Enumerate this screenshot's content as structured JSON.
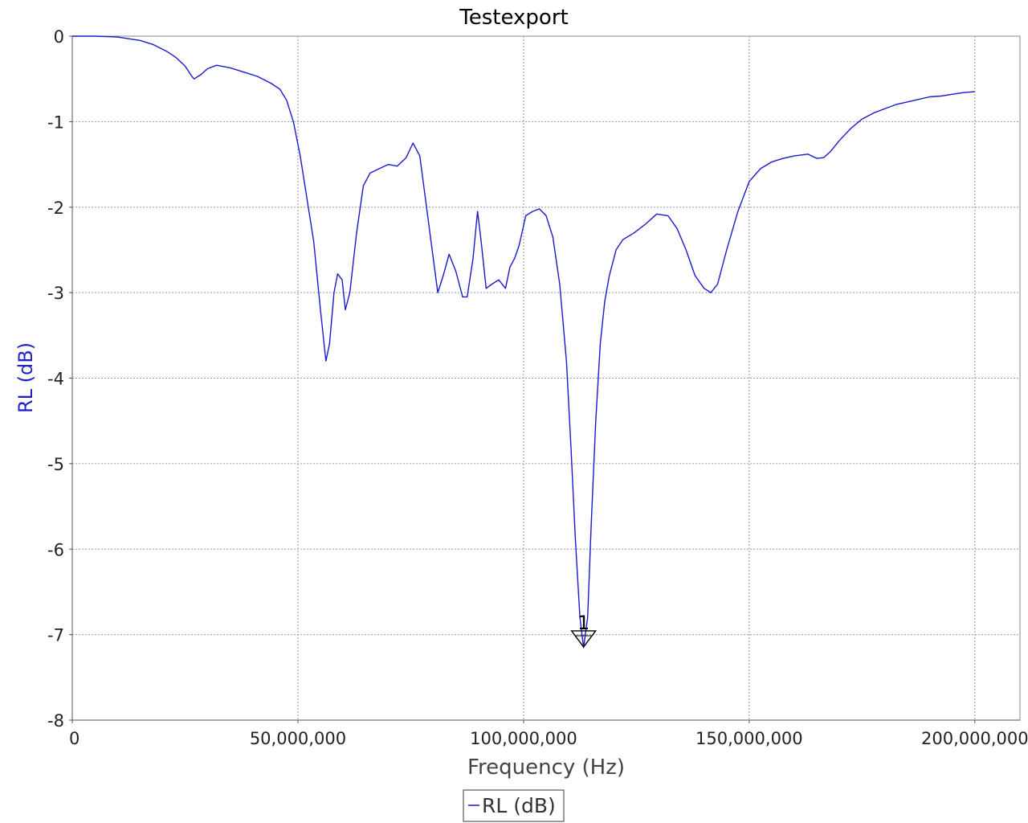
{
  "chart_data": {
    "type": "line",
    "title": "Testexport",
    "xlabel": "Frequency (Hz)",
    "ylabel": "RL (dB)",
    "xlim": [
      0,
      210000000
    ],
    "ylim": [
      -8,
      0
    ],
    "xticks": [
      0,
      50000000,
      100000000,
      150000000,
      200000000
    ],
    "xtick_labels": [
      "0",
      "50,000,000",
      "100,000,000",
      "150,000,000",
      "200,000,000"
    ],
    "yticks": [
      0,
      -1,
      -2,
      -3,
      -4,
      -5,
      -6,
      -7,
      -8
    ],
    "ytick_labels": [
      "0",
      "-1",
      "-2",
      "-3",
      "-4",
      "-5",
      "-6",
      "-7",
      "-8"
    ],
    "grid": true,
    "legend_position": "bottom-center",
    "series": [
      {
        "name": "RL (dB)",
        "color": "#1a1acc",
        "points": [
          [
            0,
            0
          ],
          [
            5000000,
            0
          ],
          [
            10000000,
            -0.01
          ],
          [
            15000000,
            -0.05
          ],
          [
            18000000,
            -0.1
          ],
          [
            21000000,
            -0.18
          ],
          [
            23000000,
            -0.25
          ],
          [
            25000000,
            -0.35
          ],
          [
            26500000,
            -0.47
          ],
          [
            27000000,
            -0.5
          ],
          [
            28500000,
            -0.45
          ],
          [
            30000000,
            -0.38
          ],
          [
            32000000,
            -0.34
          ],
          [
            35000000,
            -0.37
          ],
          [
            38000000,
            -0.42
          ],
          [
            41000000,
            -0.47
          ],
          [
            44000000,
            -0.55
          ],
          [
            46000000,
            -0.62
          ],
          [
            47500000,
            -0.75
          ],
          [
            49000000,
            -1.0
          ],
          [
            50500000,
            -1.4
          ],
          [
            52000000,
            -1.9
          ],
          [
            53500000,
            -2.4
          ],
          [
            55000000,
            -3.2
          ],
          [
            56200000,
            -3.8
          ],
          [
            57000000,
            -3.6
          ],
          [
            58000000,
            -3.0
          ],
          [
            58800000,
            -2.78
          ],
          [
            59800000,
            -2.85
          ],
          [
            60500000,
            -3.2
          ],
          [
            61500000,
            -3.0
          ],
          [
            63000000,
            -2.3
          ],
          [
            64500000,
            -1.75
          ],
          [
            66000000,
            -1.6
          ],
          [
            68000000,
            -1.55
          ],
          [
            70000000,
            -1.5
          ],
          [
            72000000,
            -1.52
          ],
          [
            74000000,
            -1.42
          ],
          [
            75500000,
            -1.25
          ],
          [
            77000000,
            -1.4
          ],
          [
            78500000,
            -2.0
          ],
          [
            80000000,
            -2.6
          ],
          [
            81000000,
            -3.0
          ],
          [
            82200000,
            -2.8
          ],
          [
            83500000,
            -2.55
          ],
          [
            85000000,
            -2.75
          ],
          [
            86500000,
            -3.05
          ],
          [
            87500000,
            -3.05
          ],
          [
            88800000,
            -2.6
          ],
          [
            89800000,
            -2.05
          ],
          [
            90600000,
            -2.4
          ],
          [
            91700000,
            -2.95
          ],
          [
            93000000,
            -2.9
          ],
          [
            94500000,
            -2.85
          ],
          [
            96000000,
            -2.95
          ],
          [
            97000000,
            -2.7
          ],
          [
            98000000,
            -2.6
          ],
          [
            99000000,
            -2.45
          ],
          [
            100500000,
            -2.1
          ],
          [
            102000000,
            -2.05
          ],
          [
            103500000,
            -2.02
          ],
          [
            105000000,
            -2.1
          ],
          [
            106500000,
            -2.35
          ],
          [
            108000000,
            -2.9
          ],
          [
            109500000,
            -3.8
          ],
          [
            110500000,
            -4.8
          ],
          [
            111500000,
            -5.9
          ],
          [
            112500000,
            -6.8
          ],
          [
            113300000,
            -7.15
          ],
          [
            114200000,
            -6.8
          ],
          [
            115000000,
            -5.7
          ],
          [
            116000000,
            -4.5
          ],
          [
            117000000,
            -3.6
          ],
          [
            118000000,
            -3.1
          ],
          [
            119000000,
            -2.8
          ],
          [
            120500000,
            -2.5
          ],
          [
            122000000,
            -2.38
          ],
          [
            124500000,
            -2.3
          ],
          [
            127000000,
            -2.2
          ],
          [
            129500000,
            -2.08
          ],
          [
            132000000,
            -2.1
          ],
          [
            134000000,
            -2.25
          ],
          [
            136000000,
            -2.5
          ],
          [
            138000000,
            -2.8
          ],
          [
            140000000,
            -2.95
          ],
          [
            141500000,
            -3.0
          ],
          [
            143000000,
            -2.9
          ],
          [
            145000000,
            -2.5
          ],
          [
            147500000,
            -2.05
          ],
          [
            150000000,
            -1.7
          ],
          [
            152500000,
            -1.55
          ],
          [
            155000000,
            -1.47
          ],
          [
            157500000,
            -1.43
          ],
          [
            160000000,
            -1.4
          ],
          [
            163000000,
            -1.38
          ],
          [
            165000000,
            -1.43
          ],
          [
            166500000,
            -1.42
          ],
          [
            168000000,
            -1.35
          ],
          [
            170000000,
            -1.22
          ],
          [
            172500000,
            -1.08
          ],
          [
            175000000,
            -0.97
          ],
          [
            177500000,
            -0.9
          ],
          [
            180000000,
            -0.85
          ],
          [
            182500000,
            -0.8
          ],
          [
            185000000,
            -0.77
          ],
          [
            187500000,
            -0.74
          ],
          [
            190000000,
            -0.71
          ],
          [
            192500000,
            -0.7
          ],
          [
            195000000,
            -0.68
          ],
          [
            197500000,
            -0.66
          ],
          [
            200000000,
            -0.65
          ]
        ]
      }
    ],
    "markers": [
      {
        "label": "1",
        "x": 113300000,
        "y": -7.05
      }
    ],
    "legend": [
      {
        "label": "RL (dB)",
        "color": "#1a1acc"
      }
    ]
  }
}
